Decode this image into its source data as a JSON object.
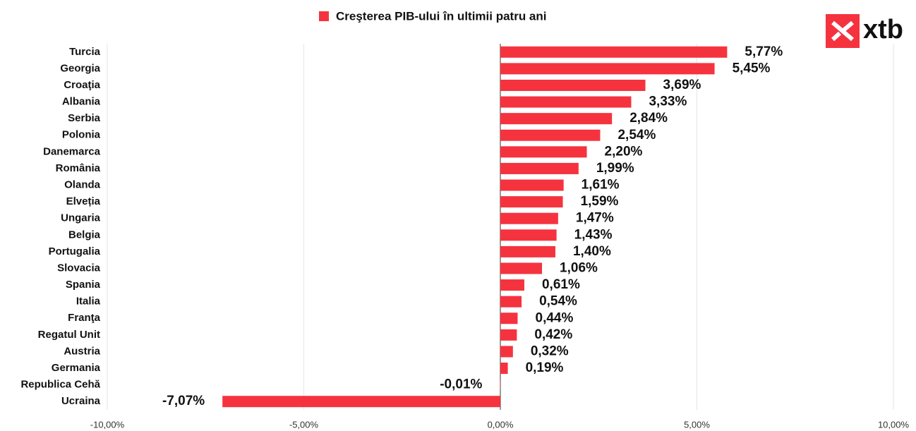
{
  "logo": "xtb",
  "chart_data": {
    "type": "hbar",
    "orientation": "horizontal",
    "categories": [
      "Turcia",
      "Georgia",
      "Croaţia",
      "Albania",
      "Serbia",
      "Polonia",
      "Danemarca",
      "România",
      "Olanda",
      "Elveția",
      "Ungaria",
      "Belgia",
      "Portugalia",
      "Slovacia",
      "Spania",
      "Italia",
      "Franţa",
      "Regatul Unit",
      "Austria",
      "Germania",
      "Republica Cehă",
      "Ucraina"
    ],
    "series": [
      {
        "name": "Creşterea PIB-ului în ultimii patru ani",
        "color": "#f5333f",
        "values": [
          5.77,
          5.45,
          3.69,
          3.33,
          2.84,
          2.54,
          2.2,
          1.99,
          1.61,
          1.59,
          1.47,
          1.43,
          1.4,
          1.06,
          0.61,
          0.54,
          0.44,
          0.42,
          0.32,
          0.19,
          -0.01,
          -7.07
        ],
        "value_labels": [
          "5,77%",
          "5,45%",
          "3,69%",
          "3,33%",
          "2,84%",
          "2,54%",
          "2,20%",
          "1,99%",
          "1,61%",
          "1,59%",
          "1,47%",
          "1,43%",
          "1,40%",
          "1,06%",
          "0,61%",
          "0,54%",
          "0,44%",
          "0,42%",
          "0,32%",
          "0,19%",
          "-0,01%",
          "-7,07%"
        ]
      }
    ],
    "xlim": [
      -10,
      10
    ],
    "xticks": [
      {
        "value": -10,
        "label": "-10,00%"
      },
      {
        "value": -5,
        "label": "-5,00%"
      },
      {
        "value": 0,
        "label": "0,00%"
      },
      {
        "value": 5,
        "label": "5,00%"
      },
      {
        "value": 10,
        "label": "10,00%"
      }
    ],
    "grid": true,
    "legend": "top"
  }
}
